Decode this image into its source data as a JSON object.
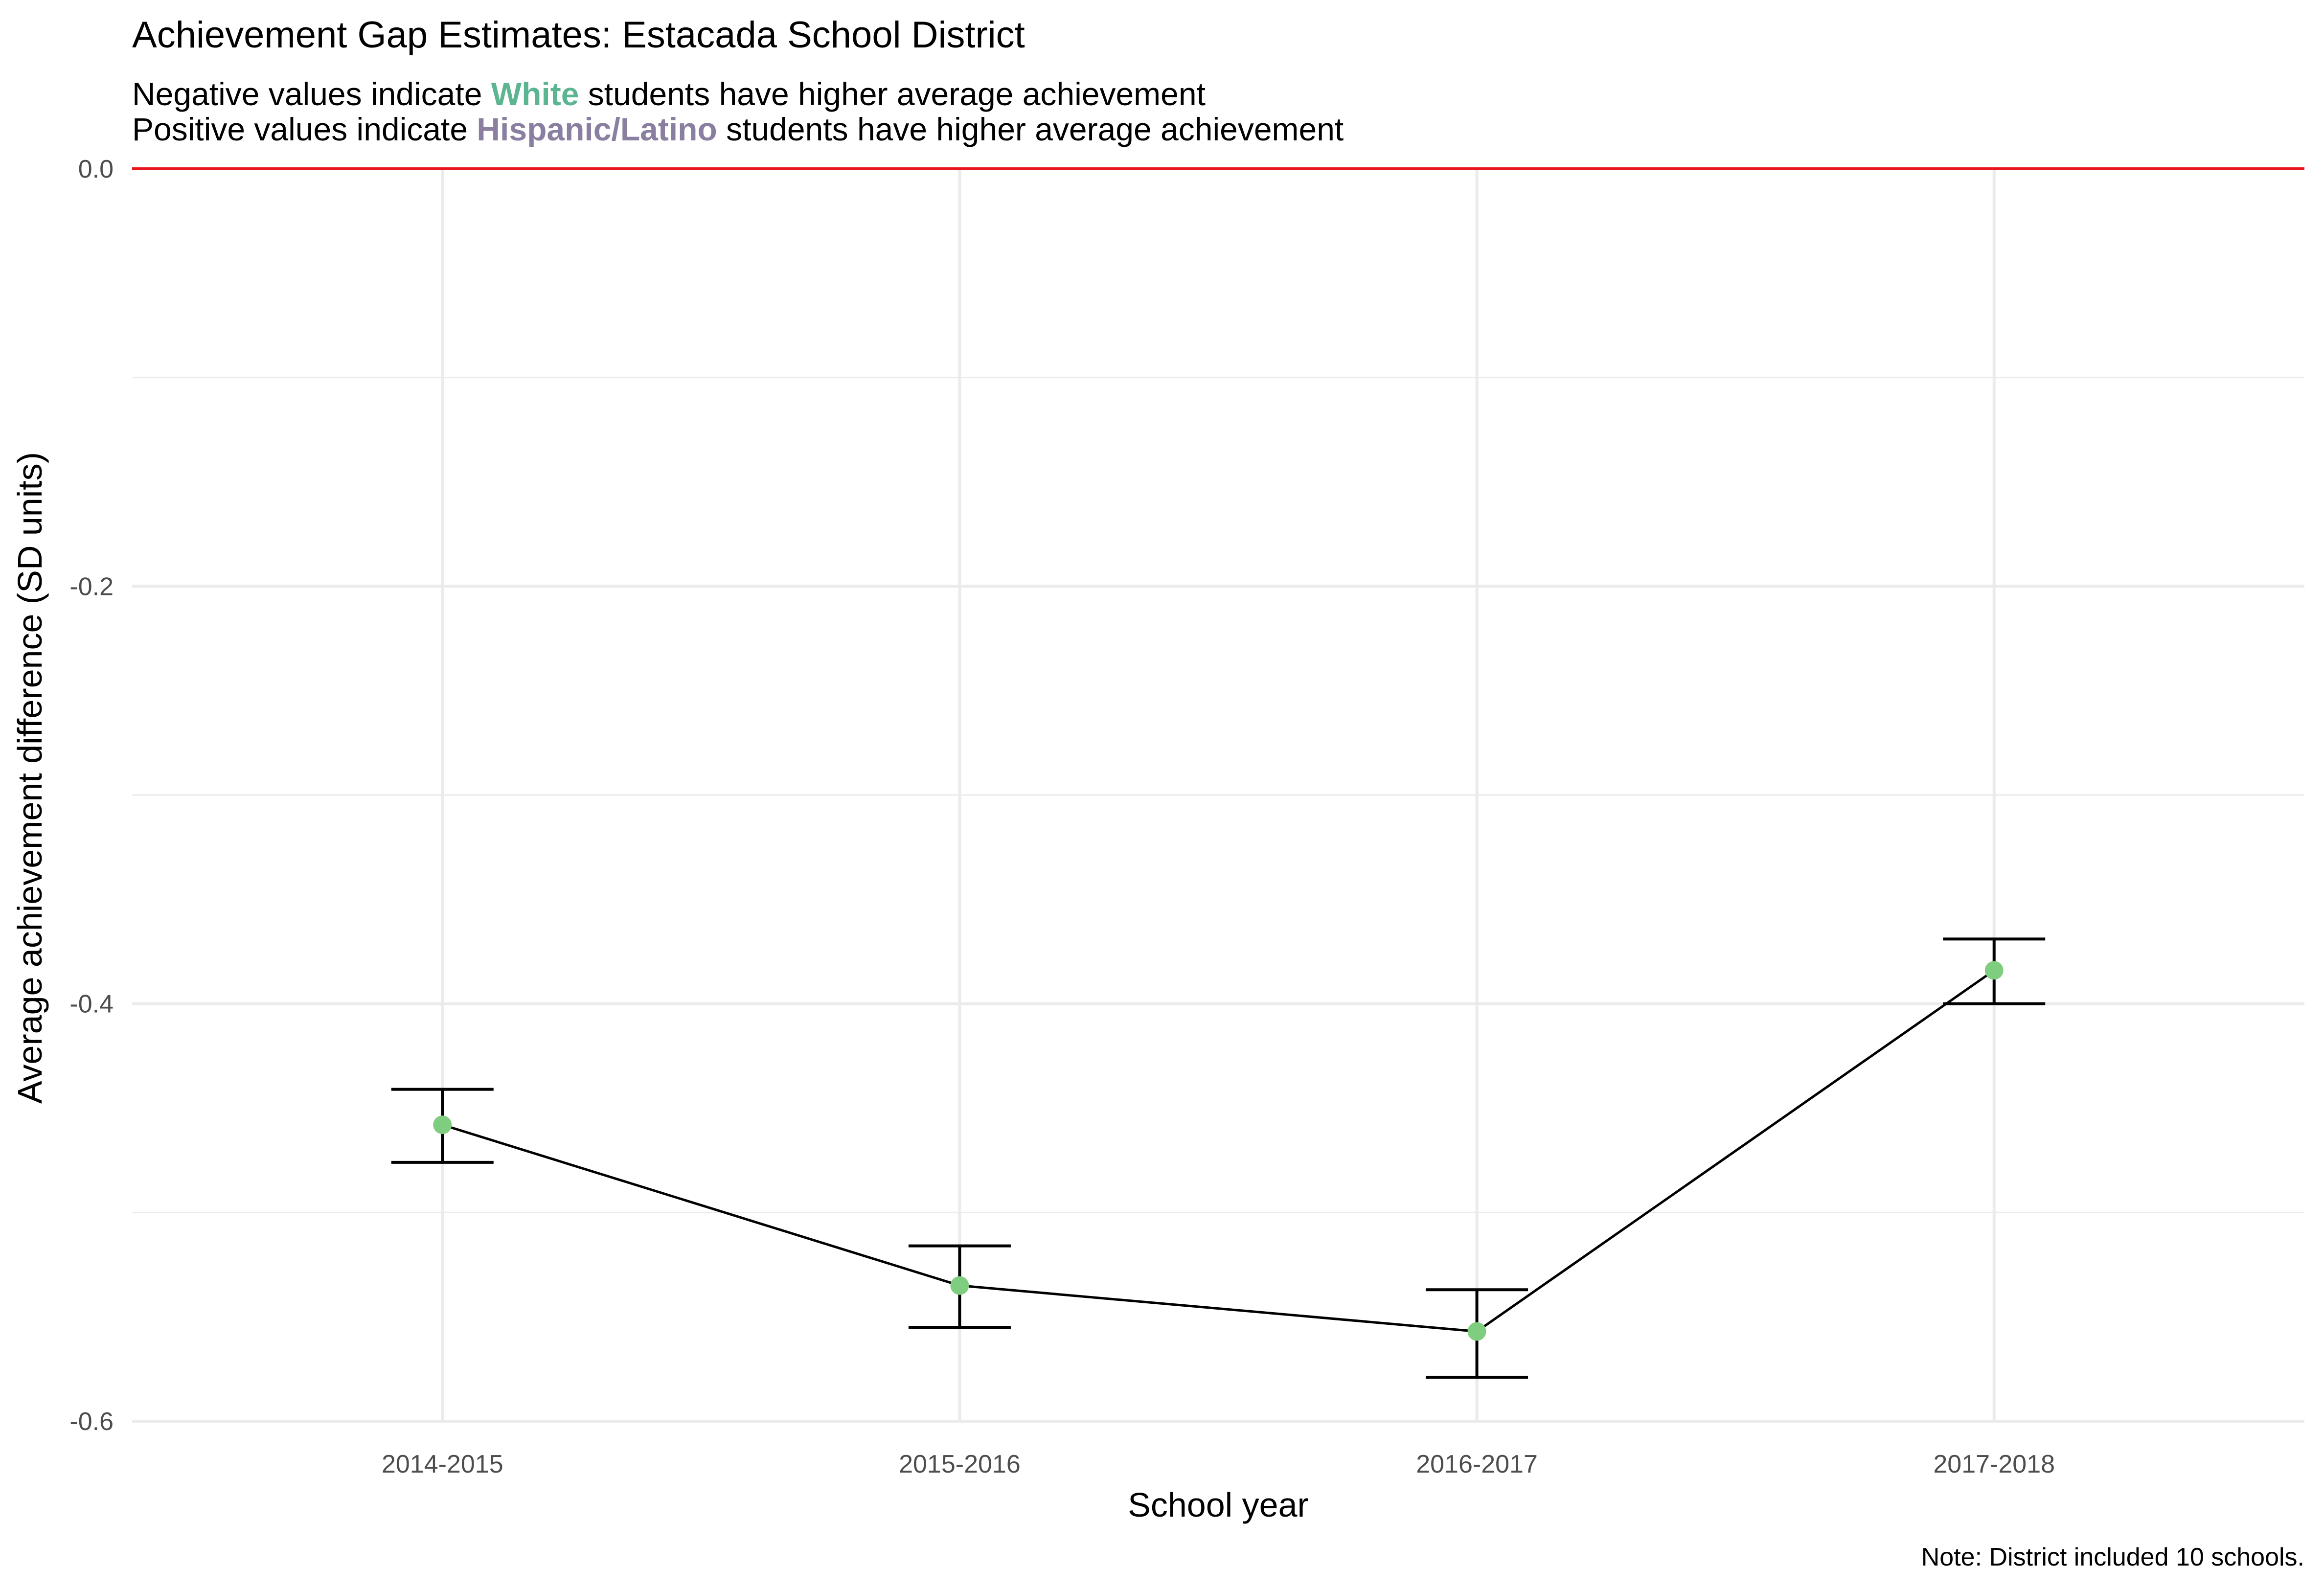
{
  "title": "Achievement Gap Estimates: Estacada School District",
  "subtitle": {
    "line1_pre": "Negative values indicate ",
    "line1_highlight": "White",
    "line1_post": " students have higher average achievement",
    "line2_pre": "Positive values indicate ",
    "line2_highlight": "Hispanic/Latino",
    "line2_post": " students have higher average achievement"
  },
  "caption": "Note: District included 10 schools.",
  "colors": {
    "white_highlight": "#5bb591",
    "hispanic_highlight": "#8a7fa0",
    "point": "#7fcd7f",
    "line": "#000000",
    "reference_line": "#e8161b",
    "grid": "#ebebeb"
  },
  "chart_data": {
    "type": "line",
    "xlabel": "School year",
    "ylabel": "Average achievement difference (SD units)",
    "categories": [
      "2014-2015",
      "2015-2016",
      "2016-2017",
      "2017-2018"
    ],
    "values": [
      -0.458,
      -0.535,
      -0.557,
      -0.384
    ],
    "error_low": [
      -0.476,
      -0.555,
      -0.579,
      -0.4
    ],
    "error_high": [
      -0.441,
      -0.516,
      -0.537,
      -0.369
    ],
    "ylim": [
      -0.6,
      0.0
    ],
    "yticks": [
      0.0,
      -0.2,
      -0.4,
      -0.6
    ],
    "ytick_labels": [
      "0.0",
      "-0.2",
      "-0.4",
      "-0.6"
    ],
    "reference_line": 0.0,
    "grid": true
  }
}
